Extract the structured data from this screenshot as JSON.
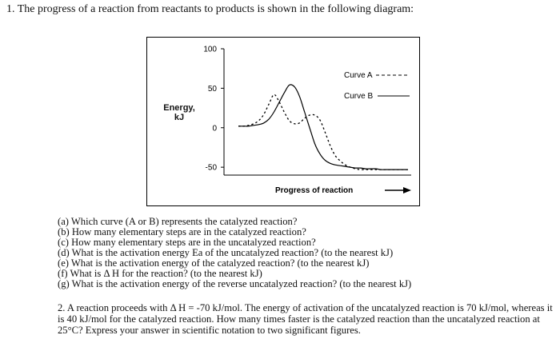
{
  "problem1": {
    "title": "1. The progress of a reaction from reactants to products is shown in the following diagram:",
    "questions": [
      "(a) Which curve (A or B) represents the catalyzed reaction?",
      "(b) How many elementary steps are in the catalyzed reaction?",
      "(c) How many elementary steps are in the uncatalyzed reaction?",
      "(d) What is the activation energy Ea of the uncatalyzed reaction? (to the nearest kJ)",
      "(e) What is the activation energy of the catalyzed reaction? (to the nearest kJ)",
      "(f) What is Δ H for the reaction? (to the nearest kJ)",
      "(g) What is the activation energy of the reverse uncatalyzed reaction? (to the nearest kJ)"
    ]
  },
  "problem2": {
    "text": "2. A reaction proceeds with Δ H = -70 kJ/mol. The energy of activation of the uncatalyzed reaction is 70 kJ/mol, whereas it is 40 kJ/mol for the catalyzed reaction. How many times faster is the catalyzed reaction than the uncatalyzed reaction at 25°C? Express your answer in scientific notation to two significant figures."
  },
  "chart_data": {
    "type": "line",
    "title": "",
    "xlabel": "Progress of reaction",
    "ylabel": "Energy, kJ",
    "ylim": [
      -60,
      100
    ],
    "yticks": [
      100,
      50,
      0,
      -50
    ],
    "grid": false,
    "legend_position": "top-right",
    "series": [
      {
        "name": "Curve A",
        "style": "dashed",
        "x": [
          0,
          3,
          6,
          9,
          12,
          15,
          18,
          21,
          24,
          27,
          30,
          33,
          36,
          39,
          42,
          45,
          48,
          51,
          54,
          57,
          60,
          63,
          66,
          69,
          72,
          75,
          78,
          81,
          84,
          87,
          90,
          93,
          96,
          100
        ],
        "y": [
          2,
          2,
          3,
          5,
          9,
          17,
          30,
          42,
          33,
          20,
          9,
          5,
          6,
          12,
          16,
          16,
          10,
          -5,
          -22,
          -35,
          -42,
          -47,
          -50,
          -52,
          -53,
          -53,
          -53,
          -53,
          -53,
          -53,
          -53,
          -53,
          -53,
          -53
        ]
      },
      {
        "name": "Curve B",
        "style": "solid",
        "x": [
          0,
          3,
          6,
          9,
          12,
          15,
          18,
          21,
          24,
          27,
          30,
          33,
          36,
          39,
          42,
          45,
          48,
          51,
          54,
          57,
          60,
          63,
          66,
          69,
          72,
          75,
          78,
          81,
          84,
          87,
          90,
          93,
          96,
          100
        ],
        "y": [
          2,
          2,
          2,
          3,
          4,
          6,
          11,
          20,
          32,
          44,
          54,
          52,
          40,
          20,
          0,
          -20,
          -33,
          -41,
          -45,
          -47,
          -48,
          -49,
          -50,
          -51,
          -51,
          -52,
          -52,
          -52,
          -53,
          -53,
          -53,
          -53,
          -53,
          -53
        ]
      }
    ]
  }
}
